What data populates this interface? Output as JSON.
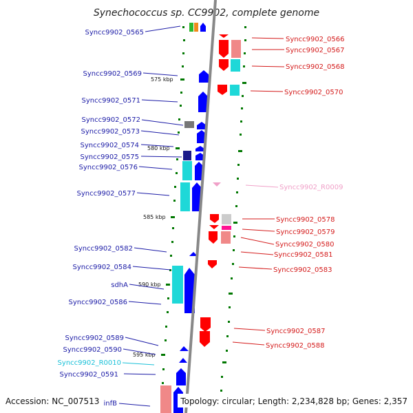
{
  "title": "Synechococcus sp. CC9902, complete genome",
  "colors": {
    "forward_gene": "#0000ff",
    "reverse_gene": "#ff0000",
    "forward_label": "#1a1aa6",
    "reverse_label": "#d41a1a",
    "rna_reverse": "#f0a0c8",
    "rna_forward": "#19c0d8",
    "cog_cyan": "#1ed8d8",
    "cog_pink": "#f08888",
    "backbone": "#888888",
    "tick": "#007700"
  },
  "scale_labels": [
    "575 kbp",
    "580 kbp",
    "585 kbp",
    "590 kbp",
    "595 kbp"
  ],
  "left_labels": [
    "Syncc9902_0565",
    "Syncc9902_0569",
    "Syncc9902_0571",
    "Syncc9902_0572",
    "Syncc9902_0573",
    "Syncc9902_0574",
    "Syncc9902_0575",
    "Syncc9902_0576",
    "Syncc9902_0577",
    "Syncc9902_0582",
    "Syncc9902_0584",
    "sdhA",
    "Syncc9902_0586",
    "Syncc9902_0589",
    "Syncc9902_0590",
    "Syncc9902_R0010",
    "Syncc9902_0591",
    "infB"
  ],
  "right_labels": [
    "Syncc9902_0566",
    "Syncc9902_0567",
    "Syncc9902_0568",
    "Syncc9902_0570",
    "Syncc9902_R0009",
    "Syncc9902_0578",
    "Syncc9902_0579",
    "Syncc9902_0580",
    "Syncc9902_0581",
    "Syncc9902_0583",
    "Syncc9902_0587",
    "Syncc9902_0588"
  ],
  "footer": {
    "accession": "Accession: NC_007513",
    "topology": "Topology: circular; Length: 2,234,828 bp; Genes: 2,357"
  }
}
